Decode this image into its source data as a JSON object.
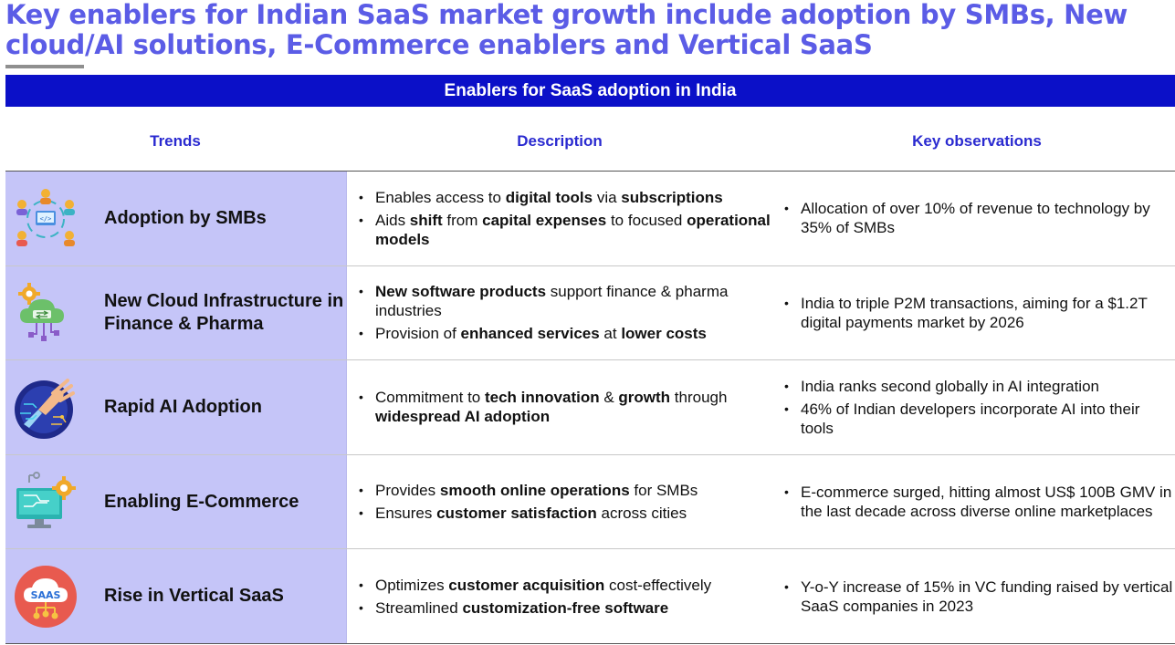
{
  "title": "Key enablers for Indian SaaS market growth include adoption by SMBs, New cloud/AI solutions, E-Commerce enablers and Vertical SaaS",
  "banner": "Enablers for SaaS adoption in India",
  "columns": {
    "trends": "Trends",
    "description": "Description",
    "observations": "Key observations"
  },
  "colors": {
    "title": "#5b5ce6",
    "banner": "#0b10c8",
    "header_text": "#2a2ad0",
    "trend_cell": "#c5c5f8"
  },
  "rows": [
    {
      "icon": "people-network-icon",
      "trend": "Adoption by SMBs",
      "description": [
        [
          {
            "t": "Enables access to "
          },
          {
            "t": "digital tools",
            "b": true
          },
          {
            "t": " via "
          },
          {
            "t": "subscriptions",
            "b": true
          }
        ],
        [
          {
            "t": "Aids "
          },
          {
            "t": "shift",
            "b": true
          },
          {
            "t": " from "
          },
          {
            "t": "capital expenses",
            "b": true
          },
          {
            "t": " to focused "
          },
          {
            "t": "operational models",
            "b": true
          }
        ]
      ],
      "observations": [
        [
          {
            "t": "Allocation of over 10% of revenue to technology by 35% of SMBs"
          }
        ]
      ]
    },
    {
      "icon": "cloud-gear-icon",
      "trend": "New Cloud Infrastructure in Finance & Pharma",
      "description": [
        [
          {
            "t": "New software products",
            "b": true
          },
          {
            "t": " support finance & pharma industries"
          }
        ],
        [
          {
            "t": "Provision of "
          },
          {
            "t": "enhanced services",
            "b": true
          },
          {
            "t": " at "
          },
          {
            "t": "lower costs",
            "b": true
          }
        ]
      ],
      "observations": [
        [
          {
            "t": "India to triple P2M transactions, aiming for a $1.2T digital payments market by 2026"
          }
        ]
      ]
    },
    {
      "icon": "ai-hand-icon",
      "trend": "Rapid AI Adoption",
      "description": [
        [
          {
            "t": "Commitment to "
          },
          {
            "t": "tech innovation",
            "b": true
          },
          {
            "t": " & "
          },
          {
            "t": "growth",
            "b": true
          },
          {
            "t": " through "
          },
          {
            "t": "widespread AI adoption",
            "b": true
          }
        ]
      ],
      "observations": [
        [
          {
            "t": "India ranks second globally in AI integration"
          }
        ],
        [
          {
            "t": "46% of Indian developers incorporate AI into their tools"
          }
        ]
      ]
    },
    {
      "icon": "monitor-gear-icon",
      "trend": "Enabling E-Commerce",
      "description": [
        [
          {
            "t": "Provides "
          },
          {
            "t": "smooth online operations",
            "b": true
          },
          {
            "t": " for SMBs"
          }
        ],
        [
          {
            "t": "Ensures "
          },
          {
            "t": "customer satisfaction",
            "b": true
          },
          {
            "t": " across cities"
          }
        ]
      ],
      "observations": [
        [
          {
            "t": "E-commerce surged, hitting almost US$ 100B GMV in the last decade across diverse online marketplaces"
          }
        ]
      ]
    },
    {
      "icon": "saas-cloud-icon",
      "icon_text": "SAAS",
      "trend": "Rise in Vertical SaaS",
      "description": [
        [
          {
            "t": "Optimizes "
          },
          {
            "t": "customer acquisition",
            "b": true
          },
          {
            "t": " cost-effectively"
          }
        ],
        [
          {
            "t": "Streamlined "
          },
          {
            "t": "customization-free software",
            "b": true
          }
        ]
      ],
      "observations": [
        [
          {
            "t": "Y-o-Y increase of 15% in VC funding raised by vertical SaaS companies in 2023"
          }
        ]
      ]
    }
  ]
}
